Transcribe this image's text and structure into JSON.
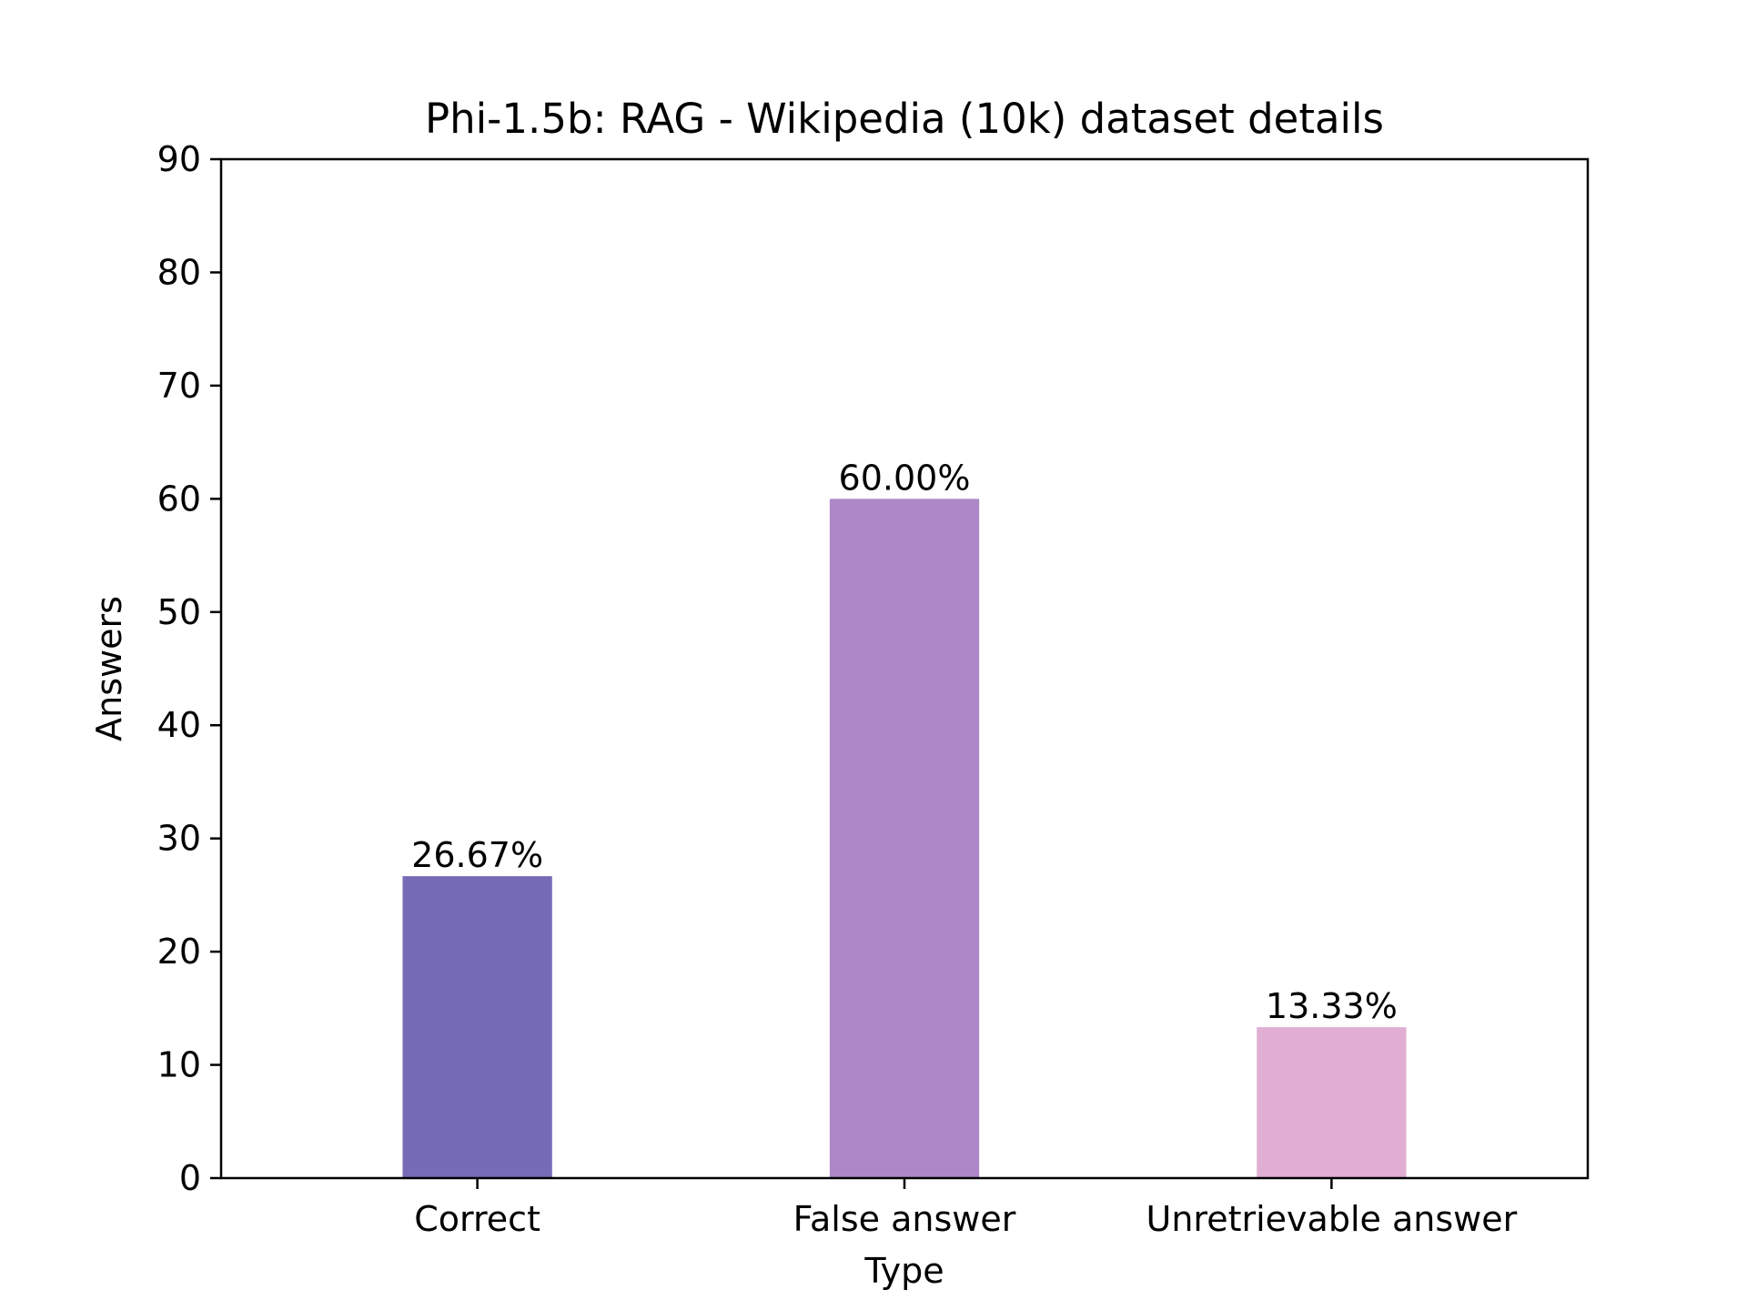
{
  "chart_data": {
    "type": "bar",
    "title": "Phi-1.5b: RAG - Wikipedia (10k) dataset details",
    "xlabel": "Type",
    "ylabel": "Answers",
    "categories": [
      "Correct",
      "False answer",
      "Unretrievable answer"
    ],
    "values": [
      26.67,
      60.0,
      13.33
    ],
    "data_labels": [
      "26.67%",
      "60.00%",
      "13.33%"
    ],
    "colors": [
      "#756bb6",
      "#ad88c6",
      "#e1aed3"
    ],
    "ylim": [
      0,
      90
    ],
    "yticks": [
      0,
      10,
      20,
      30,
      40,
      50,
      60,
      70,
      80,
      90
    ],
    "grid": false,
    "legend": "none"
  }
}
